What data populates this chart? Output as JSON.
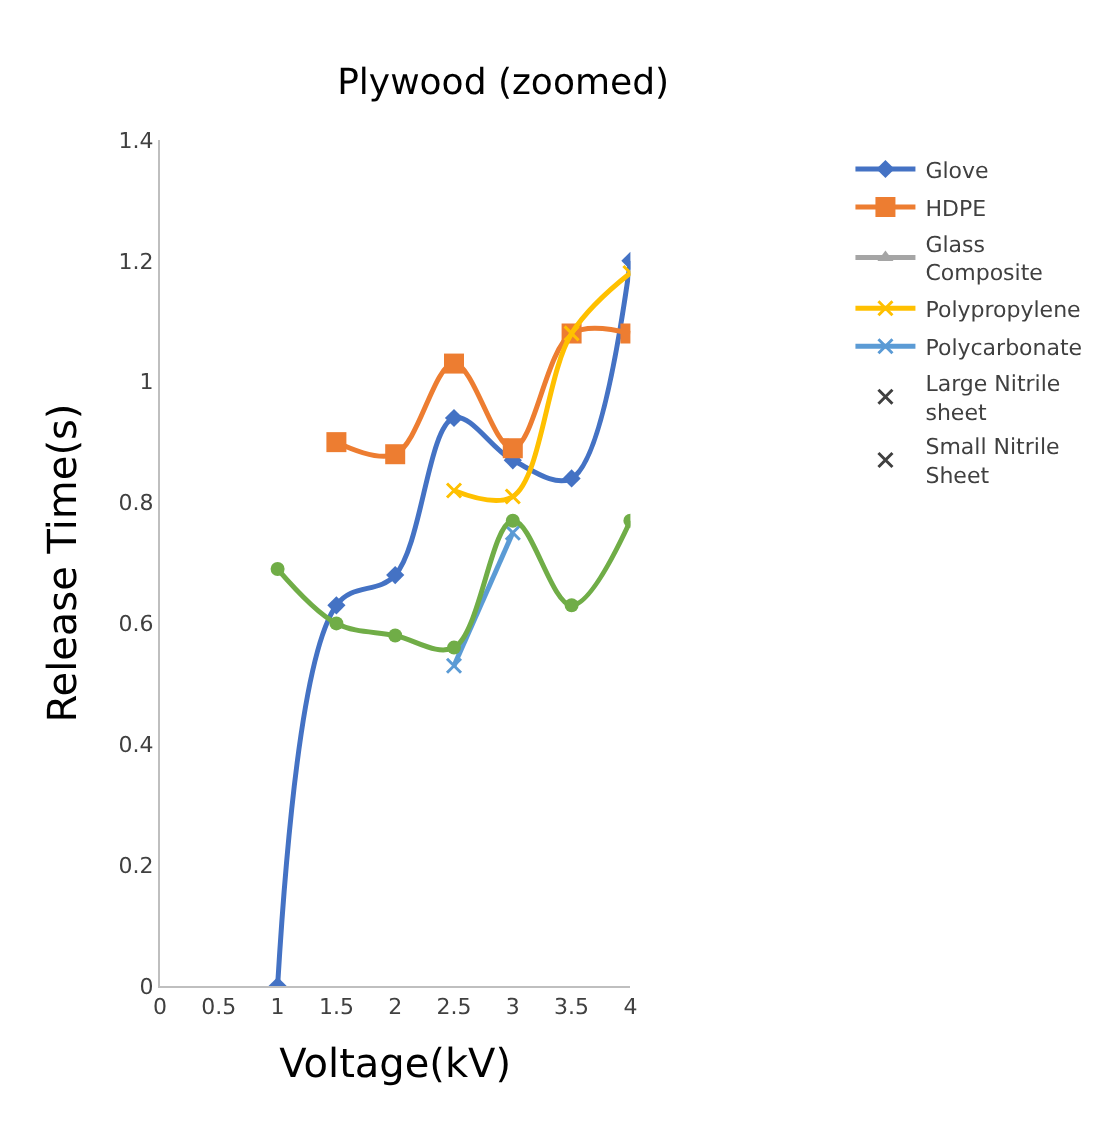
{
  "chart_data": {
    "type": "line",
    "title": "Plywood (zoomed)",
    "xlabel": "Voltage(kV)",
    "ylabel": "Release Time(s)",
    "x": [
      1,
      1.5,
      2,
      2.5,
      3,
      3.5,
      4
    ],
    "xlim": [
      0,
      4
    ],
    "xticks": [
      0,
      0.5,
      1,
      1.5,
      2,
      2.5,
      3,
      3.5,
      4
    ],
    "ylim": [
      0,
      1.4
    ],
    "yticks": [
      0,
      0.2,
      0.4,
      0.6,
      0.8,
      1,
      1.2,
      1.4
    ],
    "legend": "right",
    "series": [
      {
        "name": "Glove",
        "color": "#4472c4",
        "marker": "diamond",
        "values": [
          0,
          0.63,
          0.68,
          0.94,
          0.87,
          0.84,
          1.2
        ]
      },
      {
        "name": "HDPE",
        "color": "#ed7d31",
        "marker": "square",
        "values": [
          null,
          0.9,
          0.88,
          1.03,
          0.89,
          1.08,
          1.08
        ]
      },
      {
        "name": "Glass Composite",
        "color": "#a5a5a5",
        "marker": "triangle",
        "values": [
          null,
          null,
          null,
          null,
          null,
          null,
          null
        ]
      },
      {
        "name": "Polypropylene",
        "color": "#ffc000",
        "marker": "cross",
        "values": [
          null,
          null,
          null,
          0.82,
          0.81,
          1.08,
          1.18
        ]
      },
      {
        "name": "Polycarbonate",
        "color": "#5b9bd5",
        "marker": "cross",
        "values": [
          null,
          null,
          null,
          0.53,
          0.75,
          null,
          null
        ]
      },
      {
        "color": "#70ad47",
        "marker": "circle",
        "values": [
          0.69,
          0.6,
          0.58,
          0.56,
          0.77,
          0.63,
          0.77
        ]
      },
      {
        "name": "Large Nitrile sheet",
        "type": "scatter",
        "color": "#404040",
        "marker": "cross",
        "values": [
          null,
          null,
          null,
          null,
          null,
          null,
          null
        ]
      },
      {
        "name": "Small Nitrile Sheet",
        "type": "scatter",
        "color": "#404040",
        "marker": "cross",
        "values": [
          null,
          null,
          null,
          null,
          null,
          null,
          null
        ]
      }
    ]
  }
}
